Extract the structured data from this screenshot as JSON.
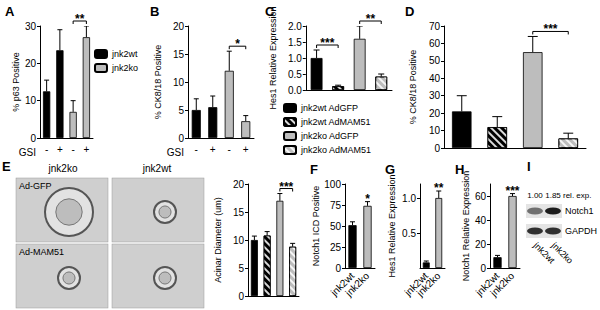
{
  "chart_data": [
    {
      "type": "bar",
      "title": "A",
      "categories": [
        "-",
        "+",
        "-",
        "+"
      ],
      "x_label": "GSI",
      "y_label": "% p63 Positive",
      "ylim": [
        0,
        30
      ],
      "yticks": [
        0,
        10,
        20,
        30
      ],
      "grid": false,
      "legend": "right",
      "series": [
        {
          "name": "jnk2wt",
          "color": "#000000",
          "values": [
            12.5,
            23.5,
            null,
            null
          ],
          "errors": [
            3,
            5.5,
            null,
            null
          ]
        },
        {
          "name": "jnk2ko",
          "color": "#bdbdbd",
          "values": [
            null,
            null,
            7,
            27
          ],
          "errors": [
            null,
            null,
            3,
            3
          ]
        }
      ],
      "annotations": [
        {
          "text": "**",
          "from": 2,
          "to": 3
        }
      ]
    },
    {
      "type": "bar",
      "title": "B",
      "categories": [
        "-",
        "+",
        "-",
        "+"
      ],
      "x_label": "GSI",
      "y_label": "% CK8/18 Positive",
      "ylim": [
        0,
        20
      ],
      "yticks": [
        0,
        5,
        10,
        15,
        20
      ],
      "grid": false,
      "series": [
        {
          "color": "#000000",
          "values": [
            5,
            5.5,
            null,
            null
          ],
          "errors": [
            2,
            2,
            null,
            null
          ]
        },
        {
          "color": "#bdbdbd",
          "values": [
            null,
            null,
            12,
            3
          ],
          "errors": [
            null,
            null,
            3.5,
            1
          ]
        }
      ],
      "annotations": [
        {
          "text": "*",
          "from": 2,
          "to": 3
        }
      ]
    },
    {
      "type": "bar",
      "title": "C",
      "categories": [
        null,
        null,
        null,
        null
      ],
      "y_label": "Hes1 Relative Expression",
      "ylim": [
        0,
        2
      ],
      "yticks": [
        {
          "value": 0,
          "label": "0.0"
        },
        0.5,
        {
          "value": 1,
          "label": "1.0"
        },
        1.5,
        {
          "value": 2,
          "label": "2.0"
        }
      ],
      "grid": false,
      "legend": "bottom",
      "series": [
        {
          "name": "jnk2wt AdGFP",
          "color": "#000000",
          "values": [
            1.0,
            null,
            null,
            null
          ],
          "errors": [
            0.25,
            null,
            null,
            null
          ]
        },
        {
          "name": "jnk2wt AdMAM51",
          "color": "#000000",
          "marker": "hatch",
          "values": [
            null,
            0.12,
            null,
            null
          ],
          "errors": [
            null,
            0.03,
            null,
            null
          ]
        },
        {
          "name": "jnk2ko AdGFP",
          "color": "#bdbdbd",
          "values": [
            null,
            null,
            1.6,
            null
          ],
          "errors": [
            null,
            null,
            0.4,
            null
          ]
        },
        {
          "name": "jnk2ko AdMAM51",
          "color": "#bdbdbd",
          "marker": "hatch",
          "values": [
            null,
            null,
            null,
            0.42
          ],
          "errors": [
            null,
            null,
            null,
            0.08
          ]
        }
      ],
      "annotations": [
        {
          "text": "***",
          "from": 0,
          "to": 1
        },
        {
          "text": "**",
          "from": 2,
          "to": 3
        }
      ]
    },
    {
      "type": "bar",
      "title": "D",
      "categories": [
        null,
        null,
        null,
        null
      ],
      "y_label": "% CK8/18 Positive",
      "ylim": [
        0,
        70
      ],
      "yticks": [
        0,
        10,
        20,
        30,
        40,
        50,
        60,
        70
      ],
      "grid": false,
      "series": [
        {
          "color": "#000000",
          "values": [
            21,
            null,
            null,
            null
          ],
          "errors": [
            9,
            null,
            null,
            null
          ]
        },
        {
          "color": "#000000",
          "marker": "hatch",
          "values": [
            null,
            12,
            null,
            null
          ],
          "errors": [
            null,
            6,
            null,
            null
          ]
        },
        {
          "color": "#bdbdbd",
          "values": [
            null,
            null,
            55,
            null
          ],
          "errors": [
            null,
            null,
            9,
            null
          ]
        },
        {
          "color": "#bdbdbd",
          "marker": "hatch",
          "values": [
            null,
            null,
            null,
            5.5
          ],
          "errors": [
            null,
            null,
            null,
            3
          ]
        }
      ],
      "annotations": [
        {
          "text": "***",
          "from": 2,
          "to": 3
        }
      ]
    },
    {
      "type": "bar",
      "categories": [
        null,
        null,
        null,
        null
      ],
      "y_label": "Acinar Diameter (um)",
      "ylim": [
        0,
        20
      ],
      "yticks": [
        0,
        5,
        10,
        15,
        20
      ],
      "grid": false,
      "series": [
        {
          "color": "#000000",
          "values": [
            10,
            null,
            null,
            null
          ],
          "errors": [
            0.7,
            null,
            null,
            null
          ]
        },
        {
          "color": "#000000",
          "marker": "hatch",
          "values": [
            null,
            10.8,
            null,
            null
          ],
          "errors": [
            null,
            0.7,
            null,
            null
          ]
        },
        {
          "color": "#bdbdbd",
          "values": [
            null,
            null,
            17,
            null
          ],
          "errors": [
            null,
            null,
            1.3,
            null
          ]
        },
        {
          "color": "#bdbdbd",
          "marker": "hatch",
          "values": [
            null,
            null,
            null,
            8.8
          ],
          "errors": [
            null,
            null,
            null,
            0.6
          ]
        }
      ],
      "annotations": [
        {
          "text": "***",
          "from": 2,
          "to": 3
        }
      ]
    },
    {
      "type": "bar",
      "title": "F",
      "categories": [
        "jnk2wt",
        "jnk2ko"
      ],
      "y_label": "Notch1 ICD Positive",
      "ylim": [
        0,
        100
      ],
      "yticks": [
        0,
        25,
        50,
        75,
        100
      ],
      "grid": false,
      "values": [
        51,
        74
      ],
      "errors": [
        4,
        5
      ],
      "colors": [
        "#000000",
        "#bdbdbd"
      ],
      "annotations": [
        {
          "text": "*",
          "at": 1
        }
      ]
    },
    {
      "type": "bar",
      "title": "G",
      "categories": [
        "jnk2wt",
        "jnk2ko"
      ],
      "y_label": "Hes1 Relative Expression",
      "ylim": [
        0,
        1.2
      ],
      "yticks": [
        0.5,
        {
          "value": 1,
          "label": "1.0"
        }
      ],
      "grid": false,
      "values": [
        0.08,
        1.0
      ],
      "errors": [
        0.02,
        0.1
      ],
      "colors": [
        "#000000",
        "#bdbdbd"
      ],
      "annotations": [
        {
          "text": "**",
          "at": 1
        }
      ]
    },
    {
      "type": "bar",
      "title": "H",
      "categories": [
        "jnk2wt",
        "jnk2ko"
      ],
      "y_label": "Notch1 Relative Expression",
      "ylim": [
        0,
        70
      ],
      "yticks": [
        0,
        20,
        40,
        60
      ],
      "grid": false,
      "values": [
        9,
        60
      ],
      "errors": [
        1.5,
        2
      ],
      "colors": [
        "#000000",
        "#bdbdbd"
      ],
      "annotations": [
        {
          "text": "***",
          "at": 1
        }
      ]
    }
  ],
  "images": {
    "label": "E",
    "columns": [
      "jnk2ko",
      "jnk2wt"
    ],
    "rows": [
      "Ad-GFP",
      "Ad-MAM51"
    ]
  },
  "blot": {
    "label": "I",
    "lanes": [
      "jnk2wt",
      "jnk2ko"
    ],
    "bands": [
      "Notch1",
      "GAPDH"
    ],
    "relative_expression": [
      "1.00",
      "1.85"
    ],
    "relative_expression_label": "rel. exp."
  }
}
